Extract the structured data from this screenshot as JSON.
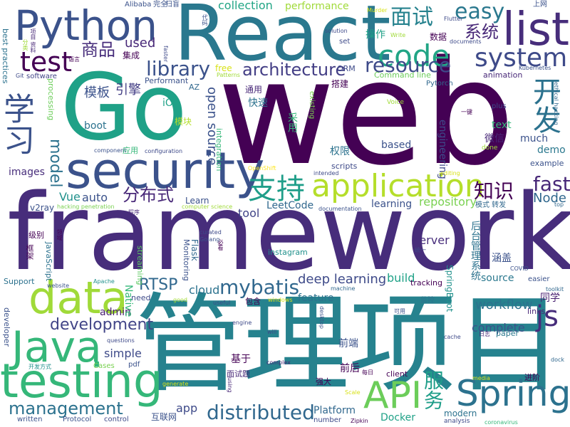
{
  "palette": {
    "p1": "#440154",
    "p2": "#3b528b",
    "p3": "#21918c",
    "p4": "#5ec962",
    "p5": "#fde725",
    "p6": "#31688e",
    "p7": "#b5de2b",
    "p8": "#35b779"
  },
  "words": [
    {
      "text": "web",
      "color": "#440154"
    },
    {
      "text": "framework",
      "color": "#472d7b"
    },
    {
      "text": "管理项目",
      "color": "#26828e"
    },
    {
      "text": "React",
      "color": "#2a788e"
    },
    {
      "text": "Go",
      "color": "#1fa187"
    },
    {
      "text": "security",
      "color": "#3b528b"
    },
    {
      "text": "testing",
      "color": "#35b779"
    },
    {
      "text": "Python",
      "color": "#3b528b"
    },
    {
      "text": "Java",
      "color": "#35b779"
    },
    {
      "text": "data",
      "color": "#a0da39"
    },
    {
      "text": "list",
      "color": "#472d7b"
    },
    {
      "text": "Spring",
      "color": "#2c728e"
    },
    {
      "text": "application",
      "color": "#b5de2b"
    },
    {
      "text": "API",
      "color": "#6ccd5a"
    },
    {
      "text": "code",
      "color": "#21a585"
    },
    {
      "text": "system",
      "color": "#3e4a89"
    },
    {
      "text": "开发",
      "color": "#2c728e"
    },
    {
      "text": "学习",
      "color": "#3b528b"
    },
    {
      "text": "支持",
      "color": "#1f9e89"
    },
    {
      "text": "js",
      "color": "#472d7b"
    },
    {
      "text": "test",
      "color": "#440154"
    },
    {
      "text": "resource",
      "color": "#3e4a89"
    },
    {
      "text": "easy",
      "color": "#2a788e"
    },
    {
      "text": "面试",
      "color": "#26828e"
    },
    {
      "text": "商品",
      "color": "#472d7b"
    },
    {
      "text": "library",
      "color": "#3b528b"
    },
    {
      "text": "architecture",
      "color": "#433e85"
    },
    {
      "text": "mybatis",
      "color": "#31688e"
    },
    {
      "text": "distributed",
      "color": "#31688e"
    },
    {
      "text": "management",
      "color": "#2c728e"
    },
    {
      "text": "development",
      "color": "#414487"
    },
    {
      "text": "知识",
      "color": "#440154"
    },
    {
      "text": "fast",
      "color": "#482878"
    },
    {
      "text": "服务",
      "color": "#1f9e89"
    },
    {
      "text": "分布式",
      "color": "#482878"
    },
    {
      "text": "系统",
      "color": "#482878"
    },
    {
      "text": "model",
      "color": "#2c728e"
    },
    {
      "text": "RTSP",
      "color": "#31688e"
    },
    {
      "text": "deep learning",
      "color": "#3e4a89"
    },
    {
      "text": "workflow",
      "color": "#2c728e"
    },
    {
      "text": "模板",
      "color": "#3b528b"
    },
    {
      "text": "引擎",
      "color": "#433e85"
    },
    {
      "text": "open source",
      "color": "#3b528b"
    },
    {
      "text": "Node",
      "color": "#31688e"
    },
    {
      "text": "repository",
      "color": "#7ad151"
    },
    {
      "text": "Vue",
      "color": "#21918c"
    },
    {
      "text": "used",
      "color": "#482878"
    },
    {
      "text": "auto",
      "color": "#3b528b"
    },
    {
      "text": "collection",
      "color": "#21a585"
    },
    {
      "text": "performance",
      "color": "#a0da39"
    },
    {
      "text": "Docker",
      "color": "#1fa187"
    },
    {
      "text": "Platform",
      "color": "#31688e"
    },
    {
      "text": "cloud",
      "color": "#2c728e"
    },
    {
      "text": "server",
      "color": "#472d7b"
    },
    {
      "text": "complete",
      "color": "#3b528b"
    },
    {
      "text": "build",
      "color": "#1fa187"
    },
    {
      "text": "app",
      "color": "#3e4a89"
    },
    {
      "text": "admin",
      "color": "#481f70"
    },
    {
      "text": "simple",
      "color": "#3e4a89"
    },
    {
      "text": "tool",
      "color": "#414487"
    },
    {
      "text": "基于",
      "color": "#440154"
    },
    {
      "text": "前端",
      "color": "#3b528b"
    },
    {
      "text": "前后",
      "color": "#440154"
    },
    {
      "text": "demo",
      "color": "#2a788e"
    },
    {
      "text": "much",
      "color": "#3b528b"
    },
    {
      "text": "LeetCode",
      "color": "#31688e"
    },
    {
      "text": "learning",
      "color": "#3b528b"
    },
    {
      "text": "source",
      "color": "#2a788e"
    },
    {
      "text": "feature",
      "color": "#2c728e"
    },
    {
      "text": "Learn",
      "color": "#3b528b"
    },
    {
      "text": "boot",
      "color": "#2c728e"
    },
    {
      "text": "iO",
      "color": "#1fa187"
    },
    {
      "text": "快速",
      "color": "#2c728e"
    },
    {
      "text": "采用",
      "color": "#35b779"
    },
    {
      "text": "权限",
      "color": "#2c728e"
    },
    {
      "text": "engineering",
      "color": "#3e4a89"
    },
    {
      "text": "based",
      "color": "#3b528b"
    },
    {
      "text": "images",
      "color": "#472d7b"
    },
    {
      "text": "微信",
      "color": "#482878"
    },
    {
      "text": "text",
      "color": "#35b779"
    },
    {
      "text": "同学",
      "color": "#481f70"
    },
    {
      "text": "后台管理系统",
      "color": "#2c728e"
    },
    {
      "text": "涵盖",
      "color": "#3b528b"
    },
    {
      "text": "SpringBoot",
      "color": "#21918c"
    },
    {
      "text": "Native",
      "color": "#35b779"
    },
    {
      "text": "Flask",
      "color": "#31688e"
    },
    {
      "text": "v2ray",
      "color": "#3b528b"
    },
    {
      "text": "instagram",
      "color": "#21918c"
    },
    {
      "text": "streaming",
      "color": "#5ec962"
    },
    {
      "text": "processing",
      "color": "#6ccd5a"
    },
    {
      "text": "JavaScript",
      "color": "#2c728e"
    },
    {
      "text": "Monitoring",
      "color": "#3b528b"
    },
    {
      "text": "scripts",
      "color": "#3e4a89"
    },
    {
      "text": "integration",
      "color": "#35b779"
    },
    {
      "text": "模块",
      "color": "#b5de2b"
    },
    {
      "text": "通用",
      "color": "#482878"
    },
    {
      "text": "搭建",
      "color": "#440154"
    },
    {
      "text": "操作",
      "color": "#1fa187"
    },
    {
      "text": "数据",
      "color": "#440154"
    },
    {
      "text": "集成",
      "color": "#440154"
    },
    {
      "text": "software",
      "color": "#414487"
    },
    {
      "text": "best practices",
      "color": "#2c728e"
    },
    {
      "text": "Command line",
      "color": "#6ccd5a"
    },
    {
      "text": "ORM",
      "color": "#3e4a89"
    },
    {
      "text": "Pytorch",
      "color": "#31688e"
    },
    {
      "text": "existing",
      "color": "#7ad151"
    },
    {
      "text": "animation",
      "color": "#482878"
    },
    {
      "text": "Kubernetes",
      "color": "#3b528b"
    },
    {
      "text": "ethical hacking",
      "color": "#31688e"
    },
    {
      "text": "plus",
      "color": "#3e4a89"
    },
    {
      "text": "Voice",
      "color": "#a0da39"
    },
    {
      "text": "一键",
      "color": "#440154"
    },
    {
      "text": "done",
      "color": "#a0da39"
    },
    {
      "text": "example",
      "color": "#3b528b"
    },
    {
      "text": "Performant",
      "color": "#3b528b"
    },
    {
      "text": "AZ",
      "color": "#31688e"
    },
    {
      "text": "开发方式",
      "color": "#21918c"
    },
    {
      "text": "Patterns",
      "color": "#a0da39"
    },
    {
      "text": "free",
      "color": "#d8e219"
    },
    {
      "text": "component",
      "color": "#3b528b"
    },
    {
      "text": "应用",
      "color": "#35b779"
    },
    {
      "text": "configuration",
      "color": "#3e4a89"
    },
    {
      "text": "OpenShift",
      "color": "#fde725"
    },
    {
      "text": "intended",
      "color": "#3e4a89"
    },
    {
      "text": "editing",
      "color": "#d8e219"
    },
    {
      "text": "模式 转发",
      "color": "#31688e"
    },
    {
      "text": "top",
      "color": "#31688e"
    },
    {
      "text": "hacking penetration",
      "color": "#7ad151"
    },
    {
      "text": "computer science",
      "color": "#a0da39"
    },
    {
      "text": "documentation",
      "color": "#3b528b"
    },
    {
      "text": "程序",
      "color": "#482878"
    },
    {
      "text": "领域",
      "color": "#440154"
    },
    {
      "text": "curated",
      "color": "#3e4a89"
    },
    {
      "text": "Golang",
      "color": "#3b528b"
    },
    {
      "text": "必看",
      "color": "#440154"
    },
    {
      "text": "级别",
      "color": "#440154"
    },
    {
      "text": "框架",
      "color": "#440154"
    },
    {
      "text": "统一",
      "color": "#3e4a89"
    },
    {
      "text": "COVID",
      "color": "#3b528b"
    },
    {
      "text": "easier",
      "color": "#3b528b"
    },
    {
      "text": "toolkit",
      "color": "#31688e"
    },
    {
      "text": "tracking",
      "color": "#440154"
    },
    {
      "text": "machine",
      "color": "#31688e"
    },
    {
      "text": "Support",
      "color": "#2c728e"
    },
    {
      "text": "website",
      "color": "#3b528b"
    },
    {
      "text": "Apache",
      "color": "#21918c"
    },
    {
      "text": "need",
      "color": "#3e4a89"
    },
    {
      "text": "good",
      "color": "#a0da39"
    },
    {
      "text": "useful",
      "color": "#3e4a89"
    },
    {
      "text": "windows",
      "color": "#d8e219"
    },
    {
      "text": "包含",
      "color": "#440154"
    },
    {
      "text": "监控",
      "color": "#2c728e"
    },
    {
      "text": "links",
      "color": "#482878"
    },
    {
      "text": "developer",
      "color": "#3b528b"
    },
    {
      "text": "engine",
      "color": "#3e4a89"
    },
    {
      "text": "questions",
      "color": "#3e4a89"
    },
    {
      "text": "Cases",
      "color": "#7ad151"
    },
    {
      "text": "pdf",
      "color": "#3b528b"
    },
    {
      "text": "will",
      "color": "#3e4a89"
    },
    {
      "text": "面试题",
      "color": "#482878"
    },
    {
      "text": "complex",
      "color": "#482878"
    },
    {
      "text": "desktop",
      "color": "#3b528b"
    },
    {
      "text": "可用",
      "color": "#3b528b"
    },
    {
      "text": "cache",
      "color": "#3e4a89"
    },
    {
      "text": "日志",
      "color": "#482878"
    },
    {
      "text": "paper",
      "color": "#2a788e"
    },
    {
      "text": "dock",
      "color": "#31688e"
    },
    {
      "text": "进阶",
      "color": "#440154"
    },
    {
      "text": "generate",
      "color": "#d8e219"
    },
    {
      "text": "using",
      "color": "#482878"
    },
    {
      "text": "每日",
      "color": "#440154"
    },
    {
      "text": "强大",
      "color": "#440154"
    },
    {
      "text": "client",
      "color": "#440154"
    },
    {
      "text": "Scale",
      "color": "#d8e219"
    },
    {
      "text": "media",
      "color": "#d8e219"
    },
    {
      "text": "modern",
      "color": "#2c728e"
    },
    {
      "text": "analysis",
      "color": "#3e4a89"
    },
    {
      "text": "coronavirus",
      "color": "#35b779"
    },
    {
      "text": "written",
      "color": "#3b528b"
    },
    {
      "text": "Protocol",
      "color": "#3b528b"
    },
    {
      "text": "control",
      "color": "#3e4a89"
    },
    {
      "text": "互联网",
      "color": "#3b528b"
    },
    {
      "text": "number",
      "color": "#3e4a89"
    },
    {
      "text": "Zipkin",
      "color": "#440154"
    },
    {
      "text": "Alibaba",
      "color": "#3b528b"
    },
    {
      "text": "完全",
      "color": "#3b528b"
    },
    {
      "text": "扫盲",
      "color": "#3b528b"
    },
    {
      "text": "上网",
      "color": "#3b528b"
    },
    {
      "text": "代码",
      "color": "#3b528b"
    },
    {
      "text": "Murder",
      "color": "#d8e219"
    },
    {
      "text": "solution",
      "color": "#3e4a89"
    },
    {
      "text": "set",
      "color": "#3e4a89"
    },
    {
      "text": "Write",
      "color": "#a0da39"
    },
    {
      "text": "documents",
      "color": "#3e4a89"
    },
    {
      "text": "Flutter",
      "color": "#3e4a89"
    },
    {
      "text": "faster",
      "color": "#3e4a89"
    },
    {
      "text": "语言",
      "color": "#440154"
    },
    {
      "text": "Git",
      "color": "#3e4a89"
    },
    {
      "text": "分类",
      "color": "#a0da39"
    },
    {
      "text": "项目 资料",
      "color": "#482878"
    }
  ]
}
